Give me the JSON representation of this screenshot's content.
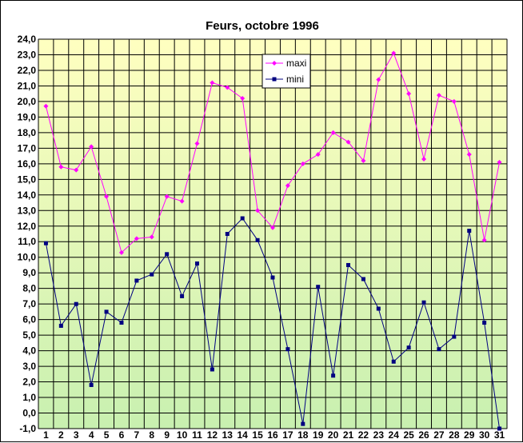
{
  "chart_data": {
    "type": "line",
    "title": "Feurs, octobre 1996",
    "xlabel": "",
    "ylabel": "",
    "x": [
      1,
      2,
      3,
      4,
      5,
      6,
      7,
      8,
      9,
      10,
      11,
      12,
      13,
      14,
      15,
      16,
      17,
      18,
      19,
      20,
      21,
      22,
      23,
      24,
      25,
      26,
      27,
      28,
      29,
      30,
      31
    ],
    "ylim": [
      -1.0,
      24.0
    ],
    "y_tick_step": 1.0,
    "y_tick_labels": [
      "-1,0",
      "0,0",
      "1,0",
      "2,0",
      "3,0",
      "4,0",
      "5,0",
      "6,0",
      "7,0",
      "8,0",
      "9,0",
      "10,0",
      "11,0",
      "12,0",
      "13,0",
      "14,0",
      "15,0",
      "16,0",
      "17,0",
      "18,0",
      "19,0",
      "20,0",
      "21,0",
      "22,0",
      "23,0",
      "24,0"
    ],
    "x_tick_labels": [
      "1",
      "2",
      "3",
      "4",
      "5",
      "6",
      "7",
      "8",
      "9",
      "10",
      "11",
      "12",
      "13",
      "14",
      "15",
      "16",
      "17",
      "18",
      "19",
      "20",
      "21",
      "22",
      "23",
      "24",
      "25",
      "26",
      "27",
      "28",
      "29",
      "30",
      "31"
    ],
    "grid": true,
    "legend_position": "top-center",
    "background_gradient": [
      "#ffffc0",
      "#c8f0b0"
    ],
    "series": [
      {
        "name": "maxi",
        "color": "#ff00ff",
        "marker": "diamond",
        "values": [
          19.7,
          15.8,
          15.6,
          17.1,
          13.9,
          10.3,
          11.2,
          11.3,
          13.9,
          13.6,
          17.3,
          21.2,
          20.9,
          20.2,
          13.0,
          11.9,
          14.6,
          16.0,
          16.6,
          18.0,
          17.4,
          16.2,
          21.4,
          23.1,
          20.5,
          16.3,
          20.4,
          20.0,
          16.6,
          11.1,
          16.1
        ]
      },
      {
        "name": "mini",
        "color": "#000080",
        "marker": "square",
        "values": [
          10.9,
          5.6,
          7.0,
          1.8,
          6.5,
          5.8,
          8.5,
          8.9,
          10.2,
          7.5,
          9.6,
          2.8,
          11.5,
          12.5,
          11.1,
          8.7,
          4.1,
          -0.7,
          8.1,
          2.4,
          9.5,
          8.6,
          6.7,
          3.3,
          4.2,
          7.1,
          4.1,
          4.9,
          11.7,
          5.8,
          -1.0
        ]
      }
    ]
  }
}
